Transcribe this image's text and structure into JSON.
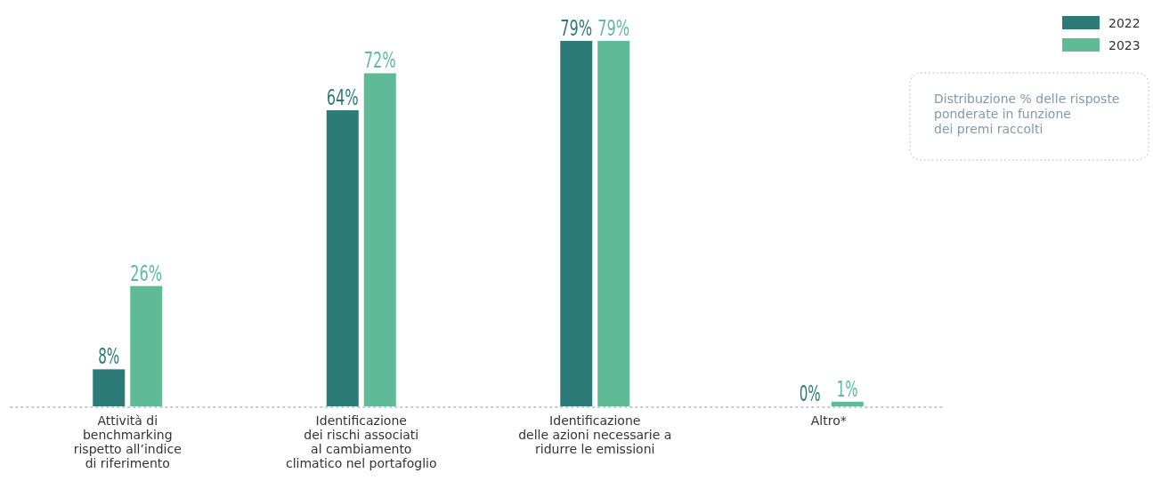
{
  "chart_data": {
    "type": "bar",
    "categories": [
      "Attività di\nbenchmarking\nrispetto all’indice\ndi riferimento",
      "Identificazione\ndei rischi associati\nal cambiamento\nclimatico nel portafoglio",
      "Identificazione\ndelle azioni necessarie a\nridurre le emissioni",
      "Altro*"
    ],
    "series": [
      {
        "name": "2022",
        "color": "#2c7b78",
        "values": [
          8,
          64,
          79,
          0
        ],
        "value_labels": [
          "8%",
          "64%",
          "79%",
          "0%"
        ]
      },
      {
        "name": "2023",
        "color": "#5fba98",
        "values": [
          26,
          72,
          79,
          1
        ],
        "value_labels": [
          "26%",
          "72%",
          "79%",
          "1%"
        ]
      }
    ],
    "annotations": [
      "Distribuzione % delle risposte\nponderate in funzione\ndei premi raccolti"
    ],
    "legend": "top right"
  }
}
